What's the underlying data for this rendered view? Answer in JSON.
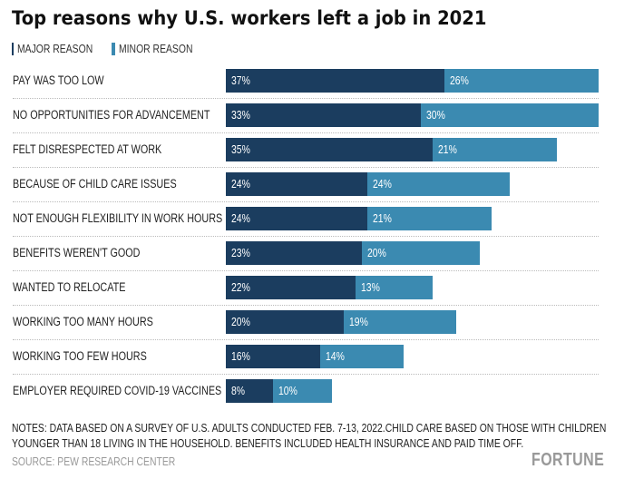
{
  "chart_data": {
    "type": "bar",
    "orientation": "horizontal",
    "stacked": true,
    "title": "Top reasons why U.S. workers left a job in 2021",
    "categories": [
      "PAY WAS TOO LOW",
      "NO OPPORTUNITIES FOR ADVANCEMENT",
      "FELT DISRESPECTED AT WORK",
      "BECAUSE OF CHILD CARE ISSUES",
      "NOT ENOUGH FLEXIBILITY IN WORK HOURS",
      "BENEFITS WEREN'T GOOD",
      "WANTED TO RELOCATE",
      "WORKING TOO MANY HOURS",
      "WORKING TOO FEW HOURS",
      "EMPLOYER REQUIRED COVID-19 VACCINES"
    ],
    "series": [
      {
        "name": "MAJOR REASON",
        "color": "#1b3d5f",
        "values": [
          37,
          33,
          35,
          24,
          24,
          23,
          22,
          20,
          16,
          8
        ]
      },
      {
        "name": "MINOR REASON",
        "color": "#3b8ab1",
        "values": [
          26,
          30,
          21,
          24,
          21,
          20,
          13,
          19,
          14,
          10
        ]
      }
    ],
    "value_suffix": "%",
    "legend_position": "top-left",
    "grid": false
  },
  "notes": "NOTES: DATA BASED ON A SURVEY OF U.S. ADULTS CONDUCTED FEB. 7-13, 2022.CHILD CARE BASED ON THOSE WITH CHILDREN YOUNGER THAN 18 LIVING IN THE HOUSEHOLD. BENEFITS INCLUDED HEALTH INSURANCE AND PAID TIME OFF.",
  "source": "SOURCE: PEW RESEARCH CENTER",
  "logo": "FORTUNE"
}
